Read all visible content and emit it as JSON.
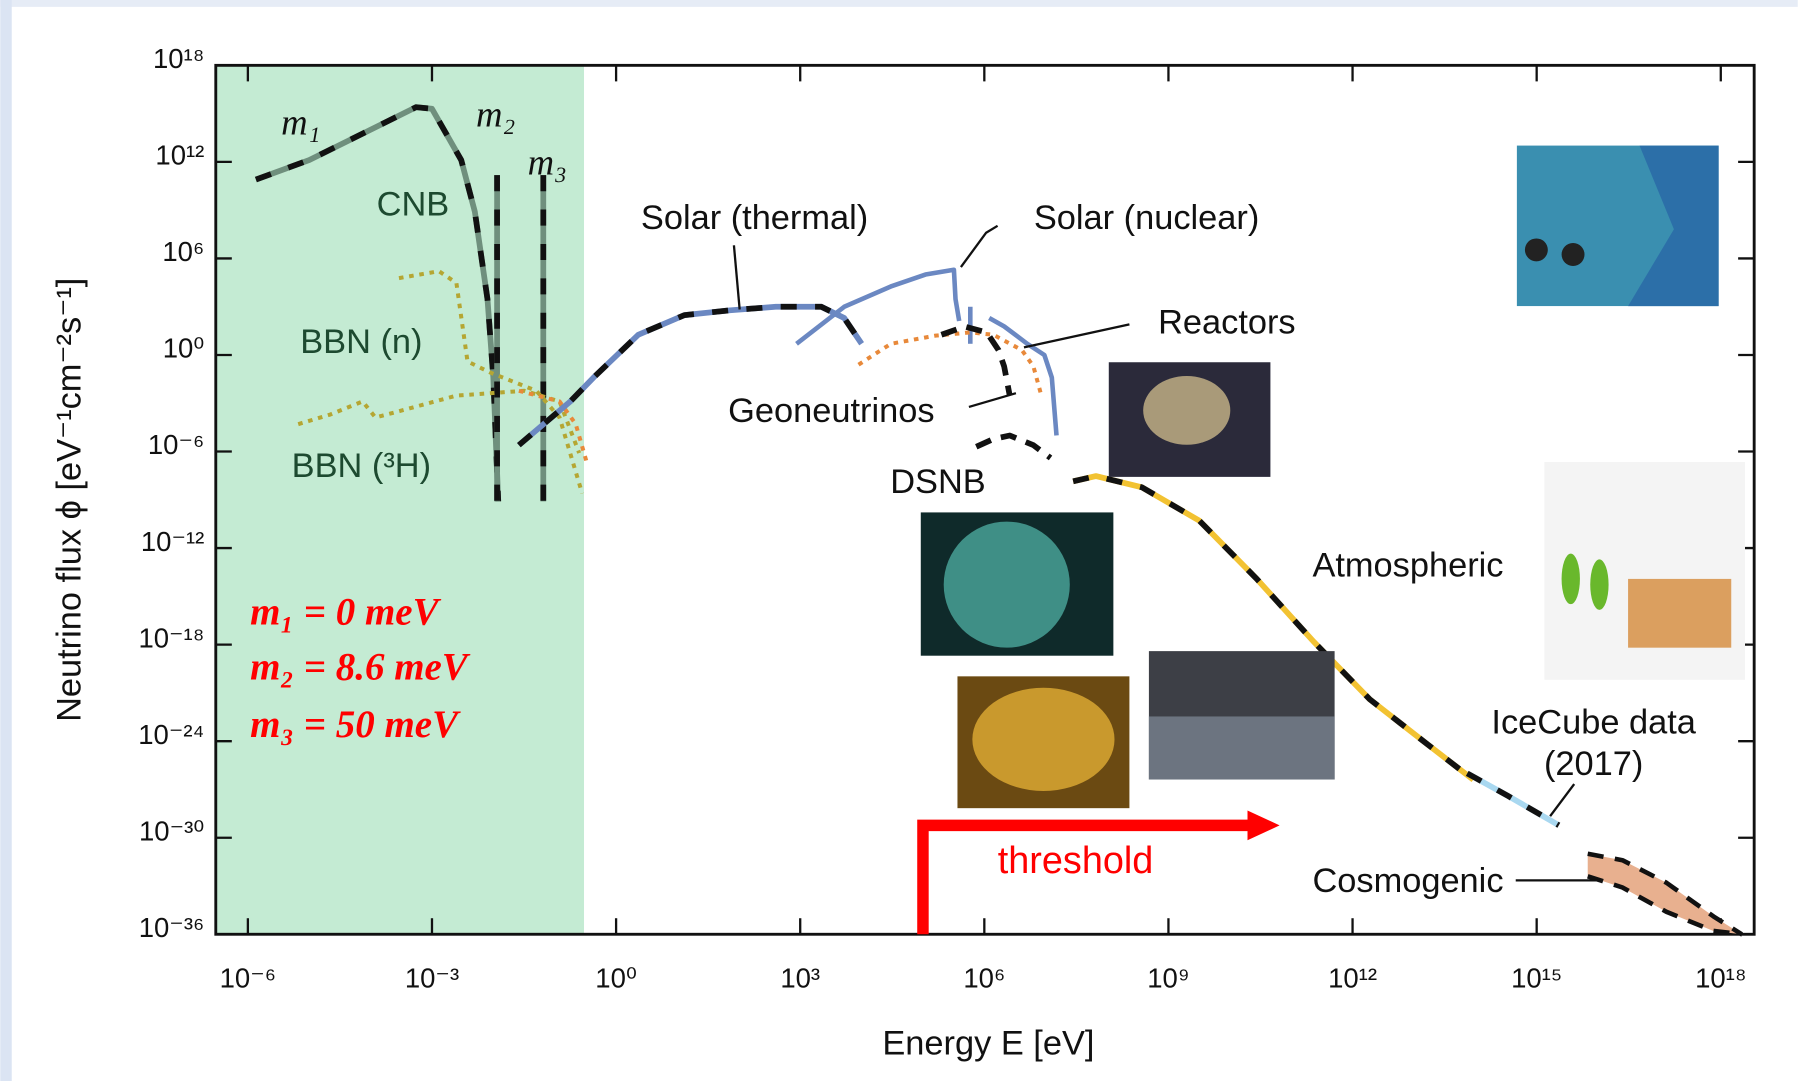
{
  "chart_data": {
    "type": "line",
    "xlabel": "Energy E [eV]",
    "ylabel": "Neutrino flux ϕ [eV⁻¹cm⁻²s⁻¹]",
    "xscale": "log",
    "yscale": "log",
    "xlim": [
      3e-07,
      3.5e+18
    ],
    "ylim": [
      1e-36,
      1e+18
    ],
    "xticks": [
      {
        "value": 1e-06,
        "label": "10⁻⁶"
      },
      {
        "value": 0.001,
        "label": "10⁻³"
      },
      {
        "value": 1,
        "label": "10⁰"
      },
      {
        "value": 1000.0,
        "label": "10³"
      },
      {
        "value": 1000000.0,
        "label": "10⁶"
      },
      {
        "value": 1000000000.0,
        "label": "10⁹"
      },
      {
        "value": 1000000000000.0,
        "label": "10¹²"
      },
      {
        "value": 1000000000000000.0,
        "label": "10¹⁵"
      },
      {
        "value": 1e+18,
        "label": "10¹⁸"
      }
    ],
    "yticks": [
      {
        "value": 1e+18,
        "label": "10¹⁸"
      },
      {
        "value": 1000000000000.0,
        "label": "10¹²"
      },
      {
        "value": 1000000.0,
        "label": "10⁶"
      },
      {
        "value": 1,
        "label": "10⁰"
      },
      {
        "value": 1e-06,
        "label": "10⁻⁶"
      },
      {
        "value": 1e-12,
        "label": "10⁻¹²"
      },
      {
        "value": 1e-18,
        "label": "10⁻¹⁸"
      },
      {
        "value": 1e-24,
        "label": "10⁻²⁴"
      },
      {
        "value": 1e-30,
        "label": "10⁻³⁰"
      },
      {
        "value": 1e-36,
        "label": "10⁻³⁶"
      }
    ],
    "shaded_region": {
      "x_end": 0.3,
      "color": "#c4ebd3"
    },
    "series": [
      {
        "name": "m₁",
        "color": "#6f8f7d",
        "line_style": "overlay",
        "x": [
          1.35e-06,
          1e-05,
          0.0001,
          0.00055,
          0.001,
          0.003,
          0.005,
          0.008,
          0.01,
          0.012
        ],
        "values": [
          80000000000.0,
          1300000000000.0,
          100000000000000.0,
          2500000000000000.0,
          2000000000000000.0,
          1300000000000.0,
          800000000.0,
          3000.0,
          0.04,
          8e-10
        ]
      },
      {
        "name": "m₂",
        "color": "#6f8f7d",
        "line_style": "overlay",
        "x": [
          0.0115,
          0.0115
        ],
        "values": [
          150000000000.0,
          8e-10
        ]
      },
      {
        "name": "m₃",
        "color": "#6f8f7d",
        "line_style": "overlay",
        "x": [
          0.065,
          0.065
        ],
        "values": [
          150000000000.0,
          8e-10
        ]
      },
      {
        "name": "BBN (n)",
        "color": "#b5a632",
        "line_style": "dotted",
        "x": [
          0.00029,
          0.0013,
          0.0025,
          0.0038,
          0.009,
          0.05,
          0.12,
          0.28
        ],
        "values": [
          60000.0,
          160000.0,
          30000.0,
          0.4,
          0.08,
          0.006,
          0.00013,
          2.5e-09
        ]
      },
      {
        "name": "BBN (³H)",
        "color": "#b5a632",
        "line_style": "dotted",
        "x": [
          6.6e-06,
          2.2e-05,
          7.4e-05,
          0.00012,
          0.00023,
          0.0025,
          0.032,
          0.12,
          0.25
        ],
        "values": [
          5e-05,
          0.0002,
          0.0013,
          0.00013,
          0.00025,
          0.003,
          0.006,
          0.0013,
          8e-07
        ]
      },
      {
        "color": "#e8893a",
        "line_style": "dotted",
        "x": [
          0.026,
          0.12,
          0.22,
          0.34
        ],
        "values": [
          0.006,
          0.0013,
          5e-05,
          1.6e-07
        ]
      },
      {
        "name": "Solar (thermal)",
        "color": "#6b88c2",
        "line_style": "overlay",
        "x": [
          0.026,
          0.18,
          0.43,
          2.3,
          13,
          72,
          400,
          2200.0,
          5200.0,
          10000.0
        ],
        "values": [
          2.5e-06,
          0.0013,
          0.04,
          18,
          300,
          600,
          1000,
          1000,
          200,
          5
        ]
      },
      {
        "name": "Solar (nuclear)",
        "color": "#6b88c2",
        "line_style": "solid",
        "x": [
          870,
          5200.0,
          30000.0,
          110000.0,
          320000.0,
          340000.0,
          390000.0
        ],
        "values": [
          5,
          1000,
          18000.0,
          100000.0,
          200000.0,
          3000,
          130
        ]
      },
      {
        "color": "#6b88c2",
        "line_style": "solid",
        "x": [
          590000.0,
          590000.0
        ],
        "values": [
          1000,
          5
        ]
      },
      {
        "color": "#6b88c2",
        "line_style": "solid",
        "x": [
          1200000.0,
          2100000.0,
          5000000.0,
          9500000.0,
          12600000.0,
          15000000.0
        ],
        "values": [
          200,
          60,
          5,
          1,
          0.04,
          1e-05
        ]
      },
      {
        "name": "Reactors",
        "color": "#e8893a",
        "line_style": "dotted",
        "x": [
          8900.0,
          30000.0,
          160000.0,
          590000.0,
          1400000.0,
          4100000.0,
          6300000.0,
          8500000.0
        ],
        "values": [
          0.25,
          5,
          16,
          25,
          18,
          2,
          0.2,
          0.003
        ]
      },
      {
        "name": "Geoneutrinos",
        "color": "#111111",
        "line_style": "dashed",
        "x": [
          200000.0,
          480000.0,
          1100000.0,
          1700000.0,
          2100000.0,
          2600000.0
        ],
        "values": [
          18,
          58,
          25,
          2,
          0.2,
          0.003
        ]
      },
      {
        "name": "DSNB",
        "color": "#111111",
        "line_style": "dashed",
        "x": [
          740000.0,
          1400000.0,
          2600000.0,
          6300000.0,
          12000000.0
        ],
        "values": [
          2e-06,
          6e-06,
          1e-05,
          2.5e-06,
          4e-07
        ]
      },
      {
        "name": "Atmospheric",
        "color": "#f2c232",
        "line_style": "overlay",
        "x": [
          28000000.0,
          66000000.0,
          370000000.0,
          3200000000.0,
          27000000000.0,
          230000000000.0,
          1900000000000.0,
          17000000000000.0,
          93000000000000.0
        ],
        "values": [
          1.4e-08,
          3e-08,
          6e-09,
          5e-11,
          1.3e-14,
          1.6e-18,
          4e-22,
          6e-25,
          4e-27
        ]
      },
      {
        "name": "IceCube data",
        "color": "#a9d8f0",
        "line_style": "overlay",
        "x": [
          74000000000000.0,
          340000000000000.0,
          2300000000000000.0
        ],
        "values": [
          1e-26,
          4e-28,
          6e-30
        ]
      },
      {
        "name": "Cosmogenic",
        "color": "#e8b08f",
        "line_style": "band",
        "x": [
          6800000000000000.0,
          2.5e+16,
          1.3e+17,
          7.6e+17,
          2.2e+18
        ],
        "values": [
          1e-31,
          4e-32,
          1.6e-33,
          1.3e-35,
          1e-36
        ],
        "lower": [
          4e-33,
          8e-34,
          2.5e-35,
          1.6e-36,
          1e-36
        ]
      }
    ],
    "annotations": [
      "CNB",
      "m₁ = 0 meV",
      "m₂ = 8.6 meV",
      "m₃ = 50 meV",
      "(2017)"
    ],
    "threshold": {
      "text": "threshold",
      "x": 100000.0,
      "color": "#ff0000"
    }
  }
}
